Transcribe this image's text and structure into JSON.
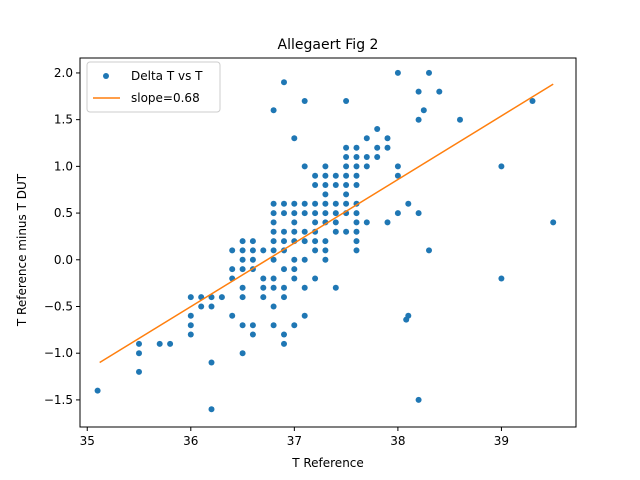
{
  "chart_data": {
    "type": "scatter",
    "title": "Allegaert Fig 2",
    "xlabel": "T Reference",
    "ylabel": "T Reference minus T DUT",
    "xlim": [
      34.93,
      39.72
    ],
    "ylim": [
      -1.79,
      2.16
    ],
    "xticks": [
      35,
      36,
      37,
      38,
      39
    ],
    "yticks": [
      -1.5,
      -1.0,
      -0.5,
      0.0,
      0.5,
      1.0,
      1.5,
      2.0
    ],
    "xtick_labels": [
      "35",
      "36",
      "37",
      "38",
      "39"
    ],
    "ytick_labels": [
      "−1.5",
      "−1.0",
      "−0.5",
      "0.0",
      "0.5",
      "1.0",
      "1.5",
      "2.0"
    ],
    "grid": false,
    "legend": {
      "placement": "top-left",
      "entries": [
        {
          "label": "Delta T vs T",
          "kind": "marker",
          "color": "#1f77b4"
        },
        {
          "label": "slope=0.68",
          "kind": "line",
          "color": "#ff7f0e"
        }
      ]
    },
    "series": [
      {
        "name": "Delta T vs T",
        "color": "#1f77b4",
        "points": [
          [
            35.1,
            -1.4
          ],
          [
            35.5,
            -1.2
          ],
          [
            35.5,
            -1.0
          ],
          [
            35.5,
            -0.9
          ],
          [
            35.7,
            -0.9
          ],
          [
            35.8,
            -0.9
          ],
          [
            36.0,
            -0.4
          ],
          [
            36.0,
            -0.6
          ],
          [
            36.0,
            -0.7
          ],
          [
            36.0,
            -0.8
          ],
          [
            36.1,
            -0.4
          ],
          [
            36.1,
            -0.5
          ],
          [
            36.2,
            -0.4
          ],
          [
            36.2,
            -0.5
          ],
          [
            36.2,
            -1.1
          ],
          [
            36.2,
            -1.6
          ],
          [
            36.3,
            -0.4
          ],
          [
            36.4,
            0.1
          ],
          [
            36.4,
            -0.1
          ],
          [
            36.4,
            -0.2
          ],
          [
            36.4,
            -0.6
          ],
          [
            36.5,
            0.2
          ],
          [
            36.5,
            0.1
          ],
          [
            36.5,
            0.0
          ],
          [
            36.5,
            -0.1
          ],
          [
            36.5,
            -0.3
          ],
          [
            36.5,
            -0.4
          ],
          [
            36.5,
            -0.7
          ],
          [
            36.5,
            -1.0
          ],
          [
            36.6,
            0.2
          ],
          [
            36.6,
            0.1
          ],
          [
            36.6,
            0.0
          ],
          [
            36.6,
            -0.1
          ],
          [
            36.6,
            -0.7
          ],
          [
            36.6,
            -0.8
          ],
          [
            36.7,
            0.1
          ],
          [
            36.7,
            -0.2
          ],
          [
            36.7,
            -0.3
          ],
          [
            36.7,
            -0.4
          ],
          [
            36.8,
            0.2
          ],
          [
            36.8,
            0.1
          ],
          [
            36.8,
            0.0
          ],
          [
            36.8,
            -0.2
          ],
          [
            36.8,
            -0.3
          ],
          [
            36.8,
            -0.5
          ],
          [
            36.8,
            -0.7
          ],
          [
            36.8,
            0.5
          ],
          [
            36.8,
            0.6
          ],
          [
            36.8,
            0.4
          ],
          [
            36.8,
            0.3
          ],
          [
            36.9,
            0.6
          ],
          [
            36.9,
            0.5
          ],
          [
            36.9,
            0.3
          ],
          [
            36.9,
            0.2
          ],
          [
            36.9,
            0.1
          ],
          [
            36.9,
            -0.1
          ],
          [
            36.9,
            -0.3
          ],
          [
            36.9,
            -0.4
          ],
          [
            36.9,
            -0.8
          ],
          [
            36.9,
            -0.9
          ],
          [
            36.9,
            1.9
          ],
          [
            36.8,
            1.6
          ],
          [
            37.0,
            1.3
          ],
          [
            37.0,
            0.6
          ],
          [
            37.0,
            0.5
          ],
          [
            37.0,
            0.4
          ],
          [
            37.0,
            0.3
          ],
          [
            37.0,
            0.2
          ],
          [
            37.0,
            0.0
          ],
          [
            37.0,
            -0.1
          ],
          [
            37.0,
            -0.2
          ],
          [
            37.0,
            -0.7
          ],
          [
            37.1,
            1.7
          ],
          [
            37.1,
            1.0
          ],
          [
            37.1,
            0.6
          ],
          [
            37.1,
            0.5
          ],
          [
            37.1,
            0.3
          ],
          [
            37.1,
            0.2
          ],
          [
            37.1,
            0.0
          ],
          [
            37.1,
            -0.3
          ],
          [
            37.1,
            -0.6
          ],
          [
            37.2,
            0.9
          ],
          [
            37.2,
            0.8
          ],
          [
            37.2,
            0.6
          ],
          [
            37.2,
            0.5
          ],
          [
            37.2,
            0.4
          ],
          [
            37.2,
            0.3
          ],
          [
            37.2,
            0.2
          ],
          [
            37.2,
            0.1
          ],
          [
            37.2,
            -0.2
          ],
          [
            37.3,
            1.0
          ],
          [
            37.3,
            0.9
          ],
          [
            37.3,
            0.8
          ],
          [
            37.3,
            0.7
          ],
          [
            37.3,
            0.6
          ],
          [
            37.3,
            0.5
          ],
          [
            37.3,
            0.4
          ],
          [
            37.3,
            0.2
          ],
          [
            37.3,
            0.1
          ],
          [
            37.3,
            0.0
          ],
          [
            37.4,
            0.9
          ],
          [
            37.4,
            0.8
          ],
          [
            37.4,
            0.6
          ],
          [
            37.4,
            0.5
          ],
          [
            37.4,
            0.4
          ],
          [
            37.4,
            0.3
          ],
          [
            37.4,
            -0.3
          ],
          [
            37.5,
            1.7
          ],
          [
            37.5,
            1.2
          ],
          [
            37.5,
            1.1
          ],
          [
            37.5,
            1.0
          ],
          [
            37.5,
            0.9
          ],
          [
            37.5,
            0.8
          ],
          [
            37.5,
            0.7
          ],
          [
            37.5,
            0.6
          ],
          [
            37.5,
            0.5
          ],
          [
            37.5,
            0.3
          ],
          [
            37.6,
            1.2
          ],
          [
            37.6,
            1.1
          ],
          [
            37.6,
            1.0
          ],
          [
            37.6,
            0.9
          ],
          [
            37.6,
            0.8
          ],
          [
            37.6,
            0.6
          ],
          [
            37.6,
            0.5
          ],
          [
            37.6,
            0.4
          ],
          [
            37.6,
            0.3
          ],
          [
            37.6,
            0.2
          ],
          [
            37.6,
            0.1
          ],
          [
            37.7,
            1.3
          ],
          [
            37.7,
            1.1
          ],
          [
            37.7,
            1.0
          ],
          [
            37.7,
            0.4
          ],
          [
            37.8,
            1.4
          ],
          [
            37.8,
            1.2
          ],
          [
            37.8,
            1.1
          ],
          [
            37.9,
            1.3
          ],
          [
            37.9,
            1.2
          ],
          [
            37.9,
            0.4
          ],
          [
            38.0,
            2.0
          ],
          [
            38.0,
            1.0
          ],
          [
            38.0,
            0.9
          ],
          [
            38.0,
            0.5
          ],
          [
            38.1,
            0.6
          ],
          [
            38.1,
            -0.6
          ],
          [
            38.08,
            -0.64
          ],
          [
            38.2,
            1.8
          ],
          [
            38.2,
            1.5
          ],
          [
            38.2,
            0.5
          ],
          [
            38.2,
            -1.5
          ],
          [
            38.25,
            1.6
          ],
          [
            38.3,
            2.0
          ],
          [
            38.3,
            0.1
          ],
          [
            38.4,
            1.8
          ],
          [
            38.6,
            1.5
          ],
          [
            39.0,
            1.0
          ],
          [
            39.0,
            -0.2
          ],
          [
            39.3,
            1.7
          ],
          [
            39.5,
            0.4
          ]
        ]
      }
    ],
    "fit_line": {
      "name": "slope=0.68",
      "color": "#ff7f0e",
      "slope": 0.68,
      "x": [
        35.12,
        39.5
      ],
      "y": [
        -1.1,
        1.88
      ]
    }
  }
}
